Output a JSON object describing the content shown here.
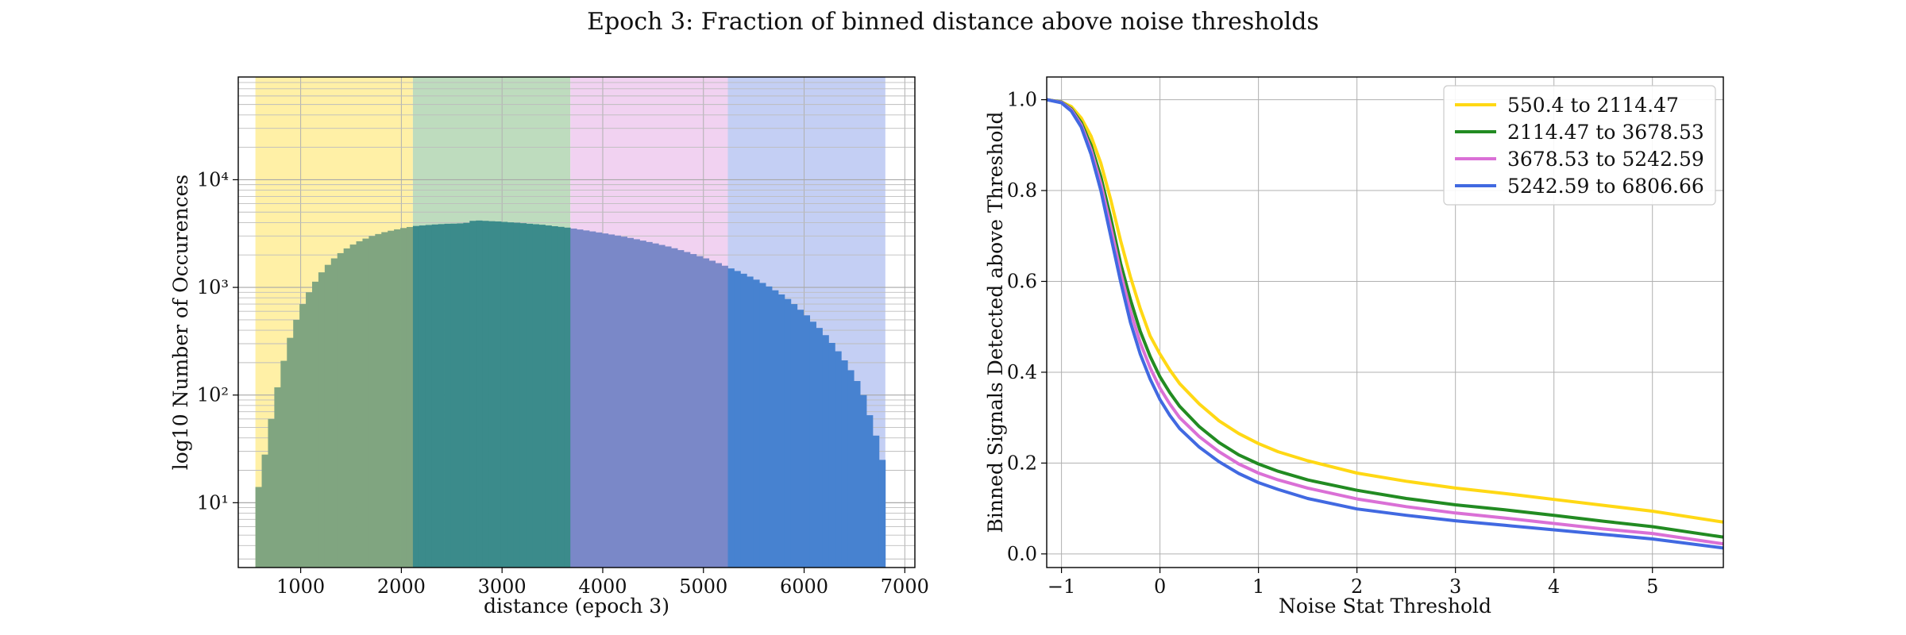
{
  "title": "Epoch 3: Fraction of binned distance above noise thresholds",
  "chart_data": [
    {
      "type": "bar",
      "subtype": "histogram",
      "xlabel": "distance (epoch 3)",
      "ylabel": "log10 Number of Occurences",
      "yscale": "log",
      "xlim": [
        380,
        7100
      ],
      "ylim": [
        2.5,
        90000
      ],
      "grid": true,
      "xticks": [
        1000,
        2000,
        3000,
        4000,
        5000,
        6000,
        7000
      ],
      "yticks": [
        {
          "value": 10,
          "label": "10¹"
        },
        {
          "value": 100,
          "label": "10²"
        },
        {
          "value": 1000,
          "label": "10³"
        },
        {
          "value": 10000,
          "label": "10⁴"
        }
      ],
      "bands": [
        {
          "from": 550.4,
          "to": 2114.47,
          "color": "#fff0a6"
        },
        {
          "from": 2114.47,
          "to": 3678.53,
          "color": "#bedcbe"
        },
        {
          "from": 3678.53,
          "to": 5242.59,
          "color": "#f1d2f1"
        },
        {
          "from": 5242.59,
          "to": 6806.66,
          "color": "#c4cff4"
        }
      ],
      "bar_colors": [
        "#80a580",
        "#3b8b8b",
        "#7a88c8",
        "#4782d0"
      ],
      "bin_start": 550.4,
      "bin_width": 62.5626,
      "counts": [
        14,
        28,
        60,
        118,
        208,
        340,
        500,
        700,
        900,
        1130,
        1380,
        1620,
        1860,
        2080,
        2300,
        2500,
        2680,
        2840,
        3000,
        3130,
        3260,
        3360,
        3460,
        3560,
        3640,
        3720,
        3760,
        3800,
        3840,
        3870,
        3900,
        3910,
        3930,
        3980,
        4150,
        4180,
        4150,
        4120,
        4100,
        4060,
        4020,
        3990,
        3950,
        3900,
        3860,
        3820,
        3760,
        3700,
        3650,
        3590,
        3520,
        3450,
        3380,
        3310,
        3240,
        3170,
        3100,
        3030,
        2960,
        2880,
        2800,
        2720,
        2640,
        2560,
        2480,
        2400,
        2310,
        2220,
        2130,
        2040,
        1950,
        1860,
        1770,
        1680,
        1590,
        1500,
        1420,
        1340,
        1260,
        1180,
        1100,
        1020,
        940,
        860,
        780,
        700,
        620,
        550,
        480,
        420,
        360,
        305,
        255,
        210,
        170,
        135,
        100,
        65,
        42,
        25
      ]
    },
    {
      "type": "line",
      "xlabel": "Noise Stat Threshold",
      "ylabel": "Binned Signals Detected above Threshold",
      "xlim": [
        -1.15,
        5.72
      ],
      "ylim": [
        -0.03,
        1.05
      ],
      "grid": true,
      "xticks": [
        -1,
        0,
        1,
        2,
        3,
        4,
        5
      ],
      "yticks": [
        0.0,
        0.2,
        0.4,
        0.6,
        0.8,
        1.0
      ],
      "legend_position": "top-right",
      "series": [
        {
          "name": "550.4 to 2114.47",
          "color": "#ffd814",
          "x": [
            -1.15,
            -1.0,
            -0.9,
            -0.8,
            -0.7,
            -0.6,
            -0.5,
            -0.4,
            -0.3,
            -0.2,
            -0.1,
            0.0,
            0.1,
            0.2,
            0.4,
            0.6,
            0.8,
            1.0,
            1.2,
            1.5,
            2.0,
            2.5,
            3.0,
            3.5,
            4.0,
            4.5,
            5.0,
            5.72
          ],
          "y": [
            1.0,
            0.995,
            0.985,
            0.96,
            0.92,
            0.86,
            0.78,
            0.69,
            0.61,
            0.54,
            0.48,
            0.44,
            0.405,
            0.375,
            0.33,
            0.293,
            0.265,
            0.243,
            0.225,
            0.205,
            0.178,
            0.16,
            0.145,
            0.133,
            0.12,
            0.107,
            0.094,
            0.07
          ]
        },
        {
          "name": "2114.47 to 3678.53",
          "color": "#228b22",
          "x": [
            -1.15,
            -1.0,
            -0.9,
            -0.8,
            -0.7,
            -0.6,
            -0.5,
            -0.4,
            -0.3,
            -0.2,
            -0.1,
            0.0,
            0.1,
            0.2,
            0.4,
            0.6,
            0.8,
            1.0,
            1.2,
            1.5,
            2.0,
            2.5,
            3.0,
            3.5,
            4.0,
            4.5,
            5.0,
            5.72
          ],
          "y": [
            1.0,
            0.995,
            0.98,
            0.95,
            0.9,
            0.83,
            0.74,
            0.64,
            0.56,
            0.49,
            0.435,
            0.39,
            0.355,
            0.325,
            0.28,
            0.245,
            0.218,
            0.198,
            0.182,
            0.163,
            0.14,
            0.122,
            0.108,
            0.097,
            0.085,
            0.072,
            0.06,
            0.037
          ]
        },
        {
          "name": "3678.53 to 5242.59",
          "color": "#da70d6",
          "x": [
            -1.15,
            -1.0,
            -0.9,
            -0.8,
            -0.7,
            -0.6,
            -0.5,
            -0.4,
            -0.3,
            -0.2,
            -0.1,
            0.0,
            0.1,
            0.2,
            0.4,
            0.6,
            0.8,
            1.0,
            1.2,
            1.5,
            2.0,
            2.5,
            3.0,
            3.5,
            4.0,
            4.5,
            5.0,
            5.72
          ],
          "y": [
            1.0,
            0.994,
            0.978,
            0.945,
            0.89,
            0.815,
            0.72,
            0.62,
            0.535,
            0.465,
            0.41,
            0.365,
            0.33,
            0.3,
            0.258,
            0.225,
            0.198,
            0.178,
            0.163,
            0.145,
            0.121,
            0.104,
            0.09,
            0.079,
            0.067,
            0.055,
            0.045,
            0.022
          ]
        },
        {
          "name": "5242.59 to 6806.66",
          "color": "#4169e1",
          "x": [
            -1.15,
            -1.0,
            -0.9,
            -0.8,
            -0.7,
            -0.6,
            -0.5,
            -0.4,
            -0.3,
            -0.2,
            -0.1,
            0.0,
            0.1,
            0.2,
            0.4,
            0.6,
            0.8,
            1.0,
            1.2,
            1.5,
            2.0,
            2.5,
            3.0,
            3.5,
            4.0,
            4.5,
            5.0,
            5.72
          ],
          "y": [
            1.0,
            0.993,
            0.975,
            0.94,
            0.88,
            0.8,
            0.7,
            0.6,
            0.51,
            0.44,
            0.385,
            0.34,
            0.305,
            0.276,
            0.235,
            0.203,
            0.177,
            0.157,
            0.142,
            0.122,
            0.099,
            0.085,
            0.073,
            0.063,
            0.053,
            0.043,
            0.033,
            0.013
          ]
        }
      ]
    }
  ]
}
